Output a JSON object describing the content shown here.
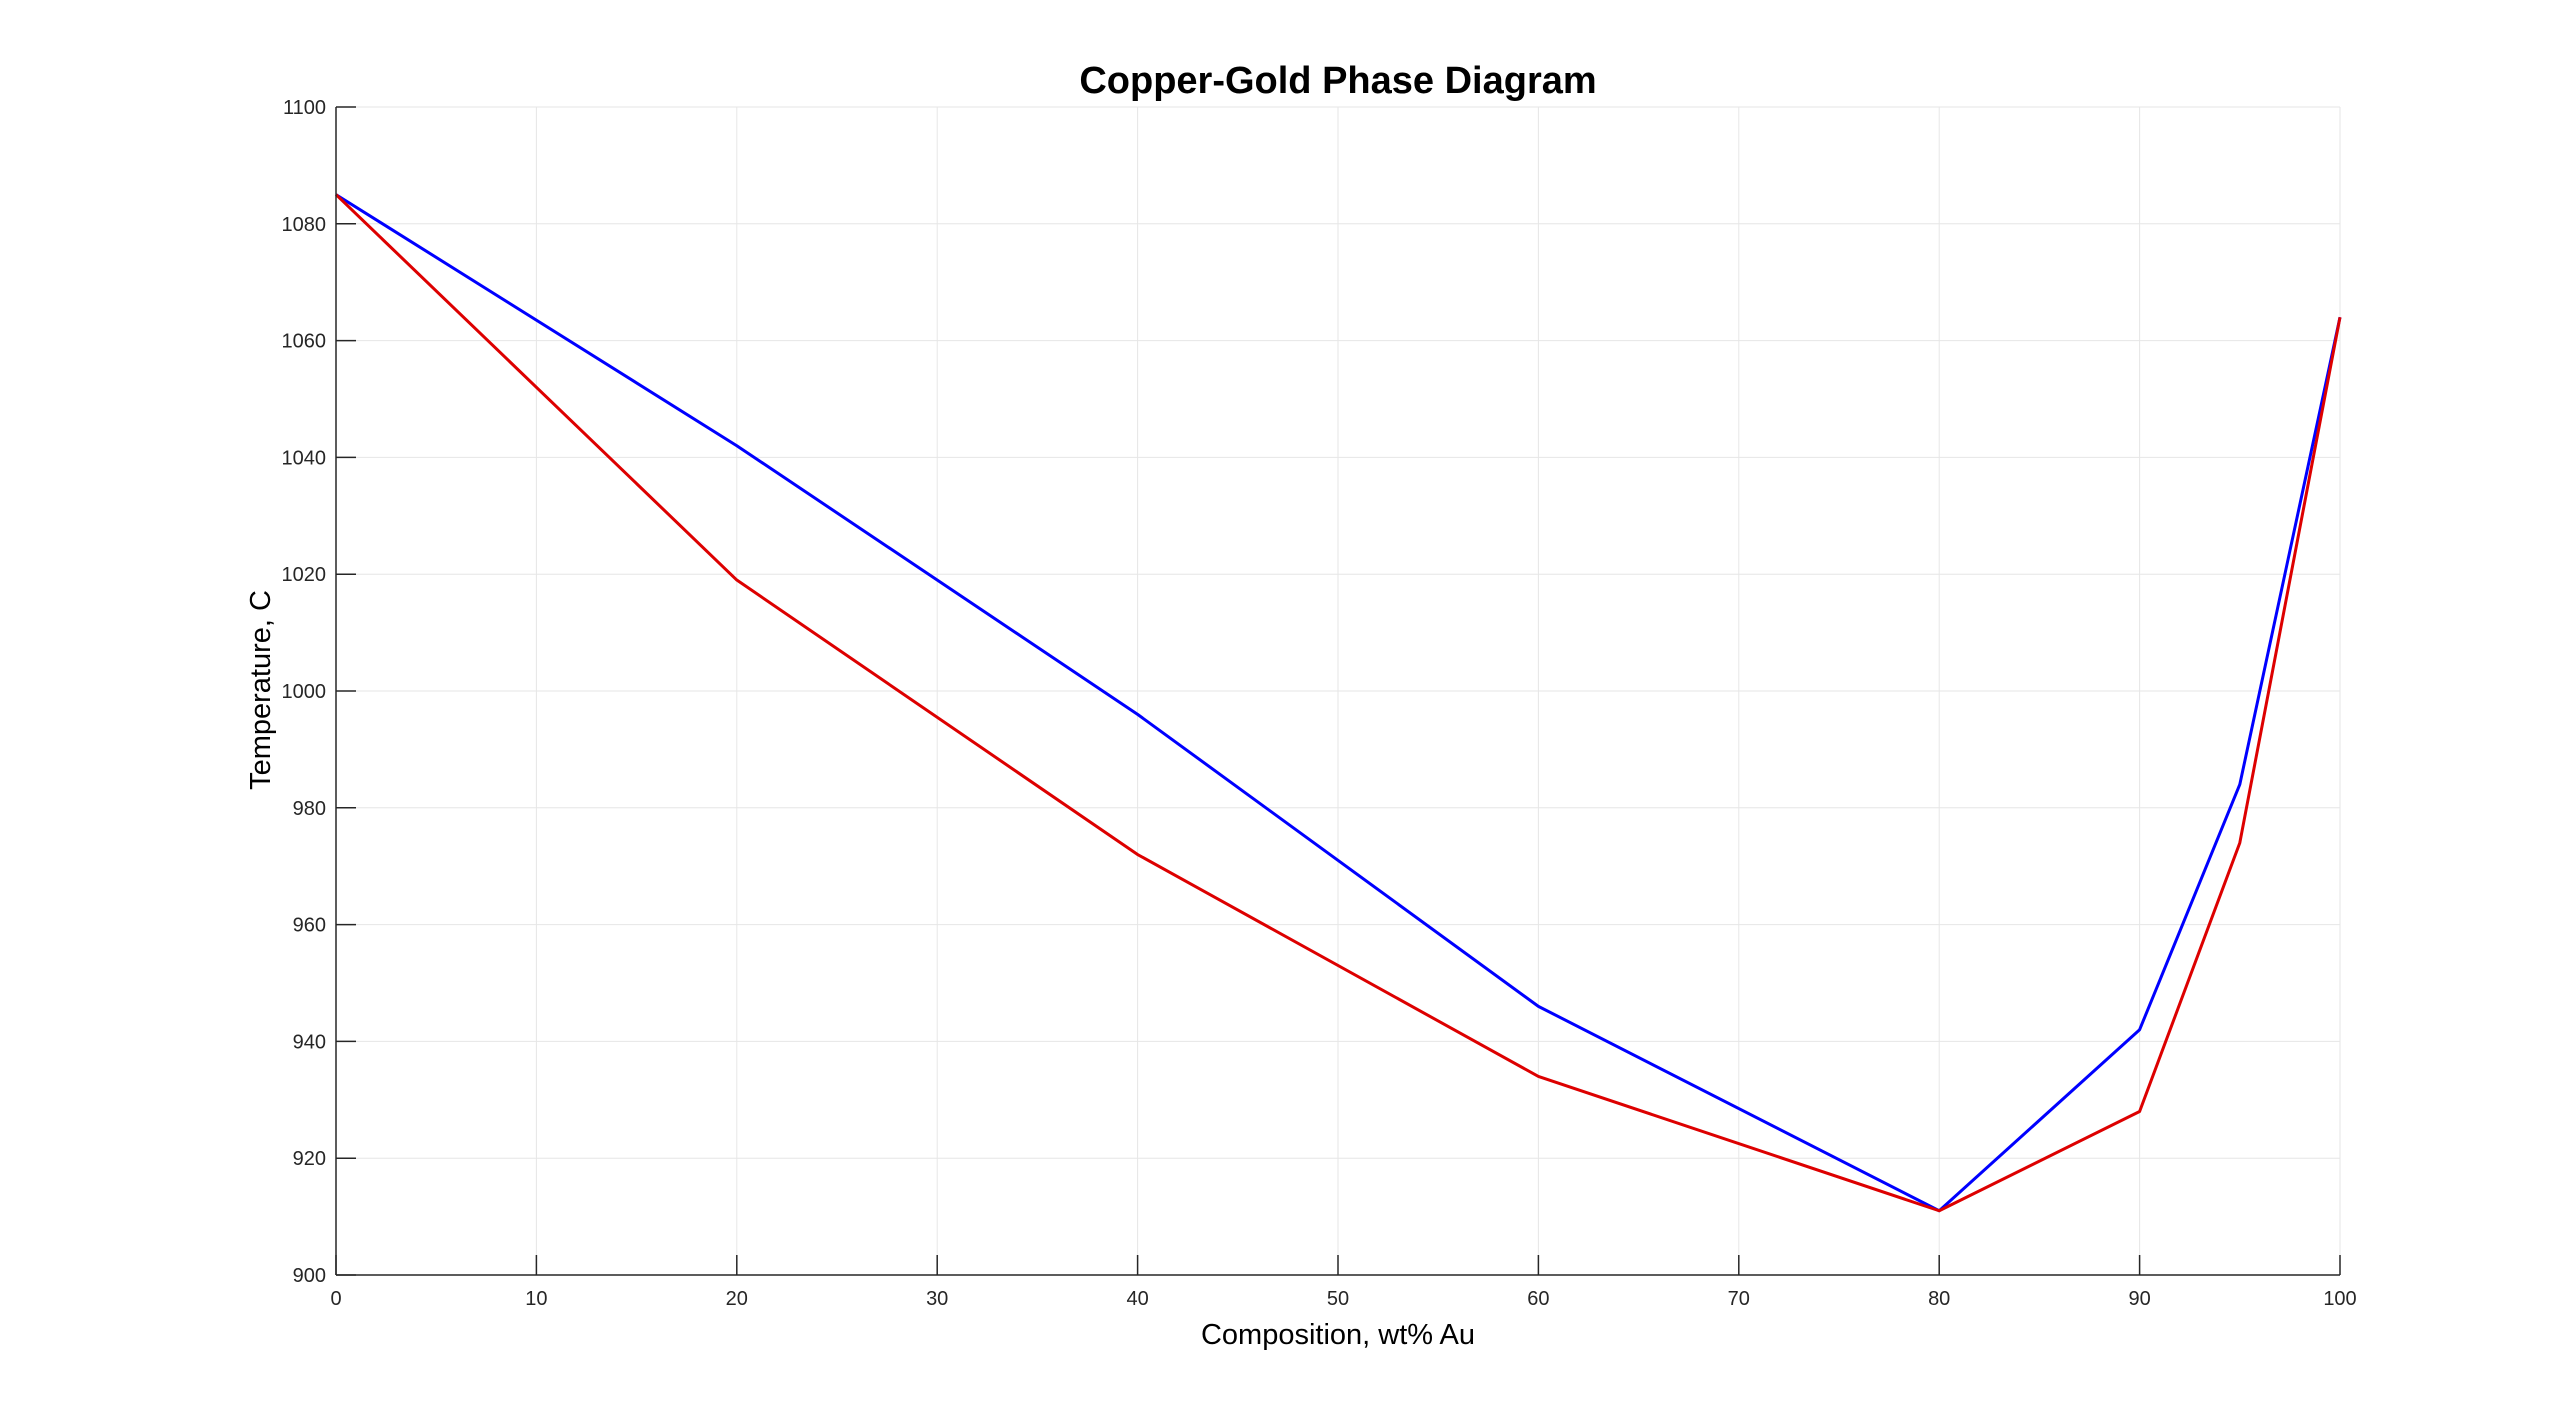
{
  "chart_data": {
    "type": "line",
    "title": "Copper-Gold Phase Diagram",
    "xlabel": "Composition, wt% Au",
    "ylabel": "Temperature, C",
    "xlim": [
      0,
      100
    ],
    "ylim": [
      900,
      1100
    ],
    "xticks": [
      0,
      10,
      20,
      30,
      40,
      50,
      60,
      70,
      80,
      90,
      100
    ],
    "yticks": [
      900,
      920,
      940,
      960,
      980,
      1000,
      1020,
      1040,
      1060,
      1080,
      1100
    ],
    "grid": true,
    "series": [
      {
        "color": "#0000ff",
        "x": [
          0,
          20,
          40,
          60,
          80,
          90,
          95,
          100
        ],
        "y": [
          1085,
          1042,
          996,
          946,
          911,
          942,
          984,
          1064
        ]
      },
      {
        "color": "#dd0000",
        "x": [
          0,
          20,
          40,
          60,
          80,
          90,
          95,
          100
        ],
        "y": [
          1085,
          1019,
          972,
          934,
          911,
          928,
          974,
          1064
        ]
      }
    ]
  }
}
